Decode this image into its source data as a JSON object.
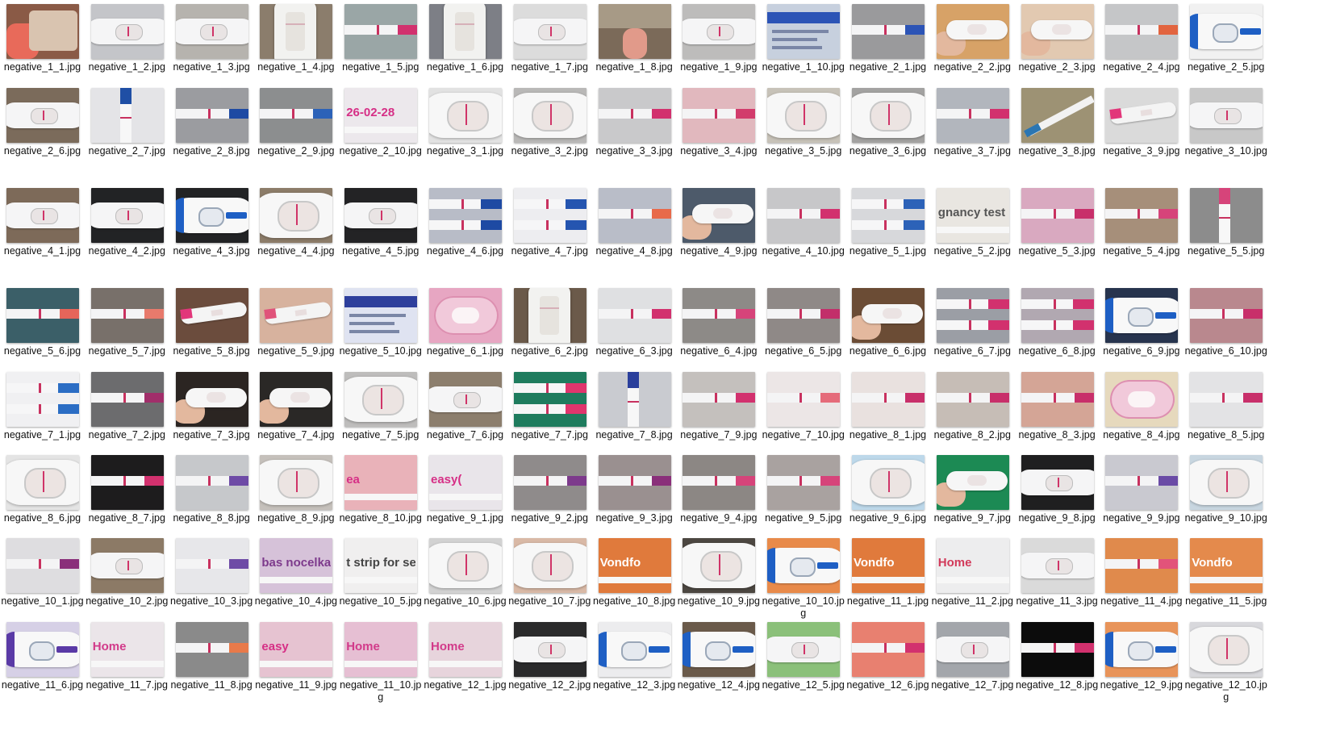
{
  "folder": {
    "view": "large-icons",
    "files": [
      {
        "name": "negative_1_1.jpg",
        "thumb": {
          "kind": "tray",
          "bg": "#8a5a46"
        }
      },
      {
        "name": "negative_1_2.jpg",
        "thumb": {
          "kind": "device",
          "bg": "#c4c5c9"
        }
      },
      {
        "name": "negative_1_3.jpg",
        "thumb": {
          "kind": "device",
          "bg": "#b6b3ae"
        }
      },
      {
        "name": "negative_1_4.jpg",
        "thumb": {
          "kind": "cassette",
          "bg": "#8b7d6c"
        }
      },
      {
        "name": "negative_1_5.jpg",
        "thumb": {
          "kind": "strip",
          "bg": "#9aa6a6"
        }
      },
      {
        "name": "negative_1_6.jpg",
        "thumb": {
          "kind": "cassette",
          "bg": "#7d7f86"
        }
      },
      {
        "name": "negative_1_7.jpg",
        "thumb": {
          "kind": "device",
          "bg": "#dcdcdc"
        }
      },
      {
        "name": "negative_1_8.jpg",
        "thumb": {
          "kind": "photo",
          "bg": "#7b6a59"
        }
      },
      {
        "name": "negative_1_9.jpg",
        "thumb": {
          "kind": "device",
          "bg": "#bdbcbb"
        }
      },
      {
        "name": "negative_1_10.jpg",
        "thumb": {
          "kind": "box",
          "bg": "#c7d0de",
          "accent": "#2c54b6"
        }
      },
      {
        "name": "negative_2_1.jpg",
        "thumb": {
          "kind": "strip",
          "bg": "#9a9a9c",
          "accent": "#2c54b6"
        }
      },
      {
        "name": "negative_2_2.jpg",
        "thumb": {
          "kind": "handheld",
          "bg": "#d7a267"
        }
      },
      {
        "name": "negative_2_3.jpg",
        "thumb": {
          "kind": "handheld",
          "bg": "#e2c9b1"
        }
      },
      {
        "name": "negative_2_4.jpg",
        "thumb": {
          "kind": "strip",
          "bg": "#c5c6c8",
          "accent": "#e2643f"
        }
      },
      {
        "name": "negative_2_5.jpg",
        "thumb": {
          "kind": "clearblue",
          "bg": "#f1f1f1",
          "accent": "#1e5fc4"
        }
      },
      {
        "name": "negative_2_6.jpg",
        "thumb": {
          "kind": "device",
          "bg": "#7b6b5b"
        }
      },
      {
        "name": "negative_2_7.jpg",
        "thumb": {
          "kind": "vstrip",
          "bg": "#e4e4e7",
          "accent": "#1f4fa5"
        }
      },
      {
        "name": "negative_2_8.jpg",
        "thumb": {
          "kind": "strip",
          "bg": "#9b9ca0",
          "accent": "#1e4aa3"
        }
      },
      {
        "name": "negative_2_9.jpg",
        "thumb": {
          "kind": "strip",
          "bg": "#8c8e8f",
          "accent": "#2c62b8"
        }
      },
      {
        "name": "negative_2_10.jpg",
        "thumb": {
          "kind": "printed",
          "bg": "#ece8ec",
          "text": "26-02-28",
          "accent": "#d62f86"
        }
      },
      {
        "name": "negative_3_1.jpg",
        "thumb": {
          "kind": "closeup",
          "bg": "#e2e2e2"
        }
      },
      {
        "name": "negative_3_2.jpg",
        "thumb": {
          "kind": "closeup",
          "bg": "#b9b8b7"
        }
      },
      {
        "name": "negative_3_3.jpg",
        "thumb": {
          "kind": "strip",
          "bg": "#c9c9cb",
          "accent": "#d2316e"
        }
      },
      {
        "name": "negative_3_4.jpg",
        "thumb": {
          "kind": "strip",
          "bg": "#e1b8be",
          "accent": "#d23c6c"
        }
      },
      {
        "name": "negative_3_5.jpg",
        "thumb": {
          "kind": "closeup",
          "bg": "#c7c2b8"
        }
      },
      {
        "name": "negative_3_6.jpg",
        "thumb": {
          "kind": "closeup",
          "bg": "#a3a2a1"
        }
      },
      {
        "name": "negative_3_7.jpg",
        "thumb": {
          "kind": "strip",
          "bg": "#b2b6bd",
          "accent": "#d2316e"
        }
      },
      {
        "name": "negative_3_8.jpg",
        "thumb": {
          "kind": "diag",
          "bg": "#9d9274",
          "accent": "#2b76b3"
        }
      },
      {
        "name": "negative_3_9.jpg",
        "thumb": {
          "kind": "pen",
          "bg": "#dadada",
          "accent": "#e2367a"
        }
      },
      {
        "name": "negative_3_10.jpg",
        "thumb": {
          "kind": "device",
          "bg": "#c8c8c8"
        }
      },
      {
        "name": "negative_4_1.jpg",
        "thumb": {
          "kind": "device",
          "bg": "#7d6a59"
        }
      },
      {
        "name": "negative_4_2.jpg",
        "thumb": {
          "kind": "device",
          "bg": "#222325"
        }
      },
      {
        "name": "negative_4_3.jpg",
        "thumb": {
          "kind": "clearblue",
          "bg": "#222325",
          "accent": "#1e5fc4"
        }
      },
      {
        "name": "negative_4_4.jpg",
        "thumb": {
          "kind": "closeup",
          "bg": "#8c7c69"
        }
      },
      {
        "name": "negative_4_5.jpg",
        "thumb": {
          "kind": "device",
          "bg": "#232325"
        }
      },
      {
        "name": "negative_4_6.jpg",
        "thumb": {
          "kind": "twostrip",
          "bg": "#b8bcc7",
          "accent": "#1e4aa3"
        }
      },
      {
        "name": "negative_4_7.jpg",
        "thumb": {
          "kind": "twostrip",
          "bg": "#ededf0",
          "accent": "#2555b0"
        }
      },
      {
        "name": "negative_4_8.jpg",
        "thumb": {
          "kind": "strip",
          "bg": "#b9bdc8",
          "accent": "#e86a4a"
        }
      },
      {
        "name": "negative_4_9.jpg",
        "thumb": {
          "kind": "handheld",
          "bg": "#4d5a6a"
        }
      },
      {
        "name": "negative_4_10.jpg",
        "thumb": {
          "kind": "strip",
          "bg": "#c7c7c9",
          "accent": "#d2316e"
        }
      },
      {
        "name": "negative_5_1.jpg",
        "thumb": {
          "kind": "twostrip",
          "bg": "#d7d8db",
          "accent": "#2c62b8"
        }
      },
      {
        "name": "negative_5_2.jpg",
        "thumb": {
          "kind": "printed",
          "bg": "#e9e6e1",
          "text": "gnancy test strip fo",
          "accent": "#555"
        }
      },
      {
        "name": "negative_5_3.jpg",
        "thumb": {
          "kind": "strip",
          "bg": "#d9a9c0",
          "accent": "#c82f6a"
        }
      },
      {
        "name": "negative_5_4.jpg",
        "thumb": {
          "kind": "strip",
          "bg": "#a68f7a",
          "accent": "#d6447a"
        }
      },
      {
        "name": "negative_5_5.jpg",
        "thumb": {
          "kind": "vstrip",
          "bg": "#8c8c8c",
          "accent": "#d6447a"
        }
      },
      {
        "name": "negative_5_6.jpg",
        "thumb": {
          "kind": "strip",
          "bg": "#3b5f68",
          "accent": "#e5655a"
        }
      },
      {
        "name": "negative_5_7.jpg",
        "thumb": {
          "kind": "strip",
          "bg": "#78706a",
          "accent": "#e87a6c"
        }
      },
      {
        "name": "negative_5_8.jpg",
        "thumb": {
          "kind": "pen",
          "bg": "#6b4c3d",
          "accent": "#e2367a"
        }
      },
      {
        "name": "negative_5_9.jpg",
        "thumb": {
          "kind": "pen",
          "bg": "#d7b29e",
          "accent": "#e0537a"
        }
      },
      {
        "name": "negative_5_10.jpg",
        "thumb": {
          "kind": "box",
          "bg": "#dfe3f1",
          "accent": "#2e3f9c"
        }
      },
      {
        "name": "negative_6_1.jpg",
        "thumb": {
          "kind": "pinkdevice",
          "bg": "#e7a6c2"
        }
      },
      {
        "name": "negative_6_2.jpg",
        "thumb": {
          "kind": "cassette",
          "bg": "#6b5a4a"
        }
      },
      {
        "name": "negative_6_3.jpg",
        "thumb": {
          "kind": "strip",
          "bg": "#dfe0e2",
          "accent": "#d2316e"
        }
      },
      {
        "name": "negative_6_4.jpg",
        "thumb": {
          "kind": "strip",
          "bg": "#8d8a87",
          "accent": "#d6447a"
        }
      },
      {
        "name": "negative_6_5.jpg",
        "thumb": {
          "kind": "strip",
          "bg": "#8f8987",
          "accent": "#c22f6a"
        }
      },
      {
        "name": "negative_6_6.jpg",
        "thumb": {
          "kind": "handheld",
          "bg": "#6b4c35"
        }
      },
      {
        "name": "negative_6_7.jpg",
        "thumb": {
          "kind": "twostrip",
          "bg": "#9b9ea5",
          "accent": "#d2316e"
        }
      },
      {
        "name": "negative_6_8.jpg",
        "thumb": {
          "kind": "twostrip",
          "bg": "#b1a8b1",
          "accent": "#d2316e"
        }
      },
      {
        "name": "negative_6_9.jpg",
        "thumb": {
          "kind": "clearblue",
          "bg": "#27344e",
          "accent": "#1e5fc4"
        }
      },
      {
        "name": "negative_6_10.jpg",
        "thumb": {
          "kind": "strip",
          "bg": "#b9888e",
          "accent": "#c82f6a"
        }
      },
      {
        "name": "negative_7_1.jpg",
        "thumb": {
          "kind": "twostrip",
          "bg": "#f0f0f2",
          "accent": "#2b6dc4"
        }
      },
      {
        "name": "negative_7_2.jpg",
        "thumb": {
          "kind": "strip",
          "bg": "#6c6c6e",
          "accent": "#a12e6a"
        }
      },
      {
        "name": "negative_7_3.jpg",
        "thumb": {
          "kind": "handheld",
          "bg": "#2b2522"
        }
      },
      {
        "name": "negative_7_4.jpg",
        "thumb": {
          "kind": "handheld",
          "bg": "#2a2826"
        }
      },
      {
        "name": "negative_7_5.jpg",
        "thumb": {
          "kind": "closeup",
          "bg": "#bebdbc"
        }
      },
      {
        "name": "negative_7_6.jpg",
        "thumb": {
          "kind": "device",
          "bg": "#8c7e6d"
        }
      },
      {
        "name": "negative_7_7.jpg",
        "thumb": {
          "kind": "twostrip",
          "bg": "#1f7c5e",
          "accent": "#e0356d"
        }
      },
      {
        "name": "negative_7_8.jpg",
        "thumb": {
          "kind": "vstrip",
          "bg": "#c9cbd0",
          "accent": "#2a3f9c"
        }
      },
      {
        "name": "negative_7_9.jpg",
        "thumb": {
          "kind": "strip",
          "bg": "#c4c0bd",
          "accent": "#d2316e"
        }
      },
      {
        "name": "negative_7_10.jpg",
        "thumb": {
          "kind": "strip",
          "bg": "#ece6e6",
          "accent": "#e56b7a"
        }
      },
      {
        "name": "negative_8_1.jpg",
        "thumb": {
          "kind": "strip",
          "bg": "#e9e1df",
          "accent": "#c82f6a"
        }
      },
      {
        "name": "negative_8_2.jpg",
        "thumb": {
          "kind": "strip",
          "bg": "#c6bdb6",
          "accent": "#c82f6a"
        }
      },
      {
        "name": "negative_8_3.jpg",
        "thumb": {
          "kind": "strip",
          "bg": "#d4a596",
          "accent": "#c82f6a"
        }
      },
      {
        "name": "negative_8_4.jpg",
        "thumb": {
          "kind": "pinkdevice",
          "bg": "#e6d9bd"
        }
      },
      {
        "name": "negative_8_5.jpg",
        "thumb": {
          "kind": "strip",
          "bg": "#e3e3e5",
          "accent": "#c82f6a"
        }
      },
      {
        "name": "negative_8_6.jpg",
        "thumb": {
          "kind": "closeup",
          "bg": "#e4e4e4"
        }
      },
      {
        "name": "negative_8_7.jpg",
        "thumb": {
          "kind": "strip",
          "bg": "#1d1c1d",
          "accent": "#d2316e"
        }
      },
      {
        "name": "negative_8_8.jpg",
        "thumb": {
          "kind": "strip",
          "bg": "#c6c8cb",
          "accent": "#6e4ba6"
        }
      },
      {
        "name": "negative_8_9.jpg",
        "thumb": {
          "kind": "closeup",
          "bg": "#c5c0bb"
        }
      },
      {
        "name": "negative_8_10.jpg",
        "thumb": {
          "kind": "printed",
          "bg": "#e9b2b9",
          "text": "ea",
          "accent": "#d62f86"
        }
      },
      {
        "name": "negative_9_1.jpg",
        "thumb": {
          "kind": "printed",
          "bg": "#e9e5ea",
          "text": "easy(",
          "accent": "#d62f86"
        }
      },
      {
        "name": "negative_9_2.jpg",
        "thumb": {
          "kind": "strip",
          "bg": "#8f8b8b",
          "accent": "#7d3a8c"
        }
      },
      {
        "name": "negative_9_3.jpg",
        "thumb": {
          "kind": "strip",
          "bg": "#9a9090",
          "accent": "#8a2f7a"
        }
      },
      {
        "name": "negative_9_4.jpg",
        "thumb": {
          "kind": "strip",
          "bg": "#8c8784",
          "accent": "#d6447a"
        }
      },
      {
        "name": "negative_9_5.jpg",
        "thumb": {
          "kind": "strip",
          "bg": "#a9a2a0",
          "accent": "#d6447a"
        }
      },
      {
        "name": "negative_9_6.jpg",
        "thumb": {
          "kind": "closeup",
          "bg": "#bdd8ea"
        }
      },
      {
        "name": "negative_9_7.jpg",
        "thumb": {
          "kind": "handheld",
          "bg": "#1c8a54"
        }
      },
      {
        "name": "negative_9_8.jpg",
        "thumb": {
          "kind": "device",
          "bg": "#1f1f20"
        }
      },
      {
        "name": "negative_9_9.jpg",
        "thumb": {
          "kind": "strip",
          "bg": "#c9c9d0",
          "accent": "#6a4ba6"
        }
      },
      {
        "name": "negative_9_10.jpg",
        "thumb": {
          "kind": "closeup",
          "bg": "#c8d6e0"
        }
      },
      {
        "name": "negative_10_1.jpg",
        "thumb": {
          "kind": "strip",
          "bg": "#dedde0",
          "accent": "#8a2f7a"
        }
      },
      {
        "name": "negative_10_2.jpg",
        "thumb": {
          "kind": "device",
          "bg": "#8c7a66"
        }
      },
      {
        "name": "negative_10_3.jpg",
        "thumb": {
          "kind": "strip",
          "bg": "#e7e7ea",
          "accent": "#6e4ba6"
        }
      },
      {
        "name": "negative_10_4.jpg",
        "thumb": {
          "kind": "printed",
          "bg": "#d6c2d9",
          "text": "bas nocelkani",
          "accent": "#7d3a8c"
        }
      },
      {
        "name": "negative_10_5.jpg",
        "thumb": {
          "kind": "printed",
          "bg": "#f0efef",
          "text": "t strip for self-",
          "accent": "#444"
        }
      },
      {
        "name": "negative_10_6.jpg",
        "thumb": {
          "kind": "closeup",
          "bg": "#d2d2d2"
        }
      },
      {
        "name": "negative_10_7.jpg",
        "thumb": {
          "kind": "closeup",
          "bg": "#d9b9a6"
        }
      },
      {
        "name": "negative_10_8.jpg",
        "thumb": {
          "kind": "printed",
          "bg": "#e07a3c",
          "text": "Vondfo",
          "accent": "#ffffff"
        }
      },
      {
        "name": "negative_10_9.jpg",
        "thumb": {
          "kind": "closeup",
          "bg": "#4c4741"
        }
      },
      {
        "name": "negative_10_10.jpg",
        "thumb": {
          "kind": "clearblue",
          "bg": "#e88a4a",
          "accent": "#1e5fc4"
        }
      },
      {
        "name": "negative_11_1.jpg",
        "thumb": {
          "kind": "printed",
          "bg": "#e07a3c",
          "text": "Vondfo",
          "accent": "#ffffff"
        }
      },
      {
        "name": "negative_11_2.jpg",
        "thumb": {
          "kind": "printed",
          "bg": "#ededee",
          "text": "Home",
          "accent": "#d23a5a"
        }
      },
      {
        "name": "negative_11_3.jpg",
        "thumb": {
          "kind": "device",
          "bg": "#dadada"
        }
      },
      {
        "name": "negative_11_4.jpg",
        "thumb": {
          "kind": "strip",
          "bg": "#e08a4c",
          "accent": "#e2537a"
        }
      },
      {
        "name": "negative_11_5.jpg",
        "thumb": {
          "kind": "printed",
          "bg": "#e48a4c",
          "text": "Vondfo",
          "accent": "#ffffff"
        }
      },
      {
        "name": "negative_11_6.jpg",
        "thumb": {
          "kind": "clearblue",
          "bg": "#d6d0e6",
          "accent": "#5a3aa6"
        }
      },
      {
        "name": "negative_11_7.jpg",
        "thumb": {
          "kind": "printed",
          "bg": "#ebe5e9",
          "text": "Home",
          "accent": "#d23a8a"
        }
      },
      {
        "name": "negative_11_8.jpg",
        "thumb": {
          "kind": "strip",
          "bg": "#8a8a8a",
          "accent": "#e87a4a"
        }
      },
      {
        "name": "negative_11_9.jpg",
        "thumb": {
          "kind": "printed",
          "bg": "#e6c3d1",
          "text": "easy",
          "accent": "#d62f86"
        }
      },
      {
        "name": "negative_11_10.jpg",
        "thumb": {
          "kind": "printed",
          "bg": "#e6bfd3",
          "text": "Home",
          "accent": "#d23a8a"
        }
      },
      {
        "name": "negative_12_1.jpg",
        "thumb": {
          "kind": "printed",
          "bg": "#e7d4dc",
          "text": "Home",
          "accent": "#d23a8a"
        }
      },
      {
        "name": "negative_12_2.jpg",
        "thumb": {
          "kind": "device",
          "bg": "#2a2a2b"
        }
      },
      {
        "name": "negative_12_3.jpg",
        "thumb": {
          "kind": "clearblue",
          "bg": "#ececee",
          "accent": "#1e5fc4"
        }
      },
      {
        "name": "negative_12_4.jpg",
        "thumb": {
          "kind": "clearblue",
          "bg": "#6a5a4a",
          "accent": "#1e5fc4"
        }
      },
      {
        "name": "negative_12_5.jpg",
        "thumb": {
          "kind": "device",
          "bg": "#8bc07a"
        }
      },
      {
        "name": "negative_12_6.jpg",
        "thumb": {
          "kind": "strip",
          "bg": "#e88070",
          "accent": "#d2316e"
        }
      },
      {
        "name": "negative_12_7.jpg",
        "thumb": {
          "kind": "device",
          "bg": "#a3a6ab"
        }
      },
      {
        "name": "negative_12_8.jpg",
        "thumb": {
          "kind": "strip",
          "bg": "#0c0c0c",
          "accent": "#d2316e"
        }
      },
      {
        "name": "negative_12_9.jpg",
        "thumb": {
          "kind": "clearblue",
          "bg": "#e8945a",
          "accent": "#1e5fc4"
        }
      },
      {
        "name": "negative_12_10.jpg",
        "thumb": {
          "kind": "closeup",
          "bg": "#d8d8dc"
        }
      }
    ]
  }
}
